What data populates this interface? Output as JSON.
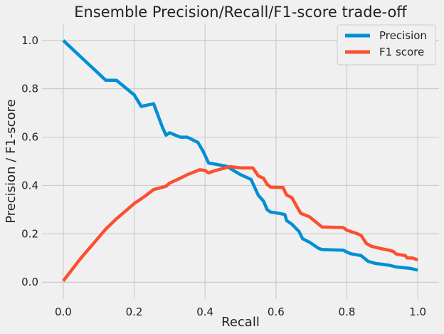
{
  "chart_data": {
    "type": "line",
    "title": "Ensemble Precision/Recall/F1-score trade-off",
    "xlabel": "Recall",
    "ylabel": "Precision / F1-score",
    "xlim": [
      -0.06,
      1.06
    ],
    "ylim": [
      -0.07,
      1.07
    ],
    "xticks": [
      "0.0",
      "0.2",
      "0.4",
      "0.6",
      "0.8",
      "1.0"
    ],
    "xtick_values": [
      0,
      0.2,
      0.4,
      0.6,
      0.8,
      1.0
    ],
    "yticks": [
      "0.0",
      "0.2",
      "0.4",
      "0.6",
      "0.8",
      "1.0"
    ],
    "ytick_values": [
      0,
      0.2,
      0.4,
      0.6,
      0.8,
      1.0
    ],
    "grid": true,
    "legend_position": "top-right",
    "series": [
      {
        "name": "Precision",
        "color": "#008fd5",
        "points": [
          [
            0.0,
            1.0
          ],
          [
            0.12,
            0.835
          ],
          [
            0.15,
            0.835
          ],
          [
            0.2,
            0.775
          ],
          [
            0.22,
            0.727
          ],
          [
            0.255,
            0.738
          ],
          [
            0.28,
            0.64
          ],
          [
            0.29,
            0.608
          ],
          [
            0.3,
            0.618
          ],
          [
            0.33,
            0.6
          ],
          [
            0.35,
            0.6
          ],
          [
            0.38,
            0.578
          ],
          [
            0.395,
            0.54
          ],
          [
            0.41,
            0.493
          ],
          [
            0.46,
            0.48
          ],
          [
            0.5,
            0.445
          ],
          [
            0.53,
            0.425
          ],
          [
            0.55,
            0.36
          ],
          [
            0.565,
            0.335
          ],
          [
            0.575,
            0.3
          ],
          [
            0.585,
            0.29
          ],
          [
            0.6,
            0.287
          ],
          [
            0.625,
            0.28
          ],
          [
            0.63,
            0.255
          ],
          [
            0.645,
            0.24
          ],
          [
            0.665,
            0.21
          ],
          [
            0.675,
            0.18
          ],
          [
            0.695,
            0.165
          ],
          [
            0.72,
            0.14
          ],
          [
            0.73,
            0.135
          ],
          [
            0.79,
            0.132
          ],
          [
            0.81,
            0.118
          ],
          [
            0.84,
            0.11
          ],
          [
            0.86,
            0.086
          ],
          [
            0.88,
            0.078
          ],
          [
            0.92,
            0.07
          ],
          [
            0.94,
            0.063
          ],
          [
            0.96,
            0.06
          ],
          [
            0.98,
            0.057
          ],
          [
            1.0,
            0.05
          ]
        ]
      },
      {
        "name": "F1 score",
        "color": "#fc4f30",
        "points": [
          [
            0.0,
            0.005
          ],
          [
            0.05,
            0.1
          ],
          [
            0.12,
            0.22
          ],
          [
            0.15,
            0.262
          ],
          [
            0.2,
            0.325
          ],
          [
            0.23,
            0.355
          ],
          [
            0.255,
            0.383
          ],
          [
            0.29,
            0.397
          ],
          [
            0.3,
            0.41
          ],
          [
            0.33,
            0.43
          ],
          [
            0.35,
            0.445
          ],
          [
            0.385,
            0.465
          ],
          [
            0.4,
            0.462
          ],
          [
            0.41,
            0.452
          ],
          [
            0.43,
            0.462
          ],
          [
            0.47,
            0.478
          ],
          [
            0.5,
            0.473
          ],
          [
            0.535,
            0.473
          ],
          [
            0.55,
            0.44
          ],
          [
            0.565,
            0.43
          ],
          [
            0.575,
            0.405
          ],
          [
            0.585,
            0.393
          ],
          [
            0.62,
            0.392
          ],
          [
            0.63,
            0.36
          ],
          [
            0.645,
            0.35
          ],
          [
            0.66,
            0.31
          ],
          [
            0.67,
            0.285
          ],
          [
            0.695,
            0.27
          ],
          [
            0.72,
            0.24
          ],
          [
            0.73,
            0.228
          ],
          [
            0.79,
            0.226
          ],
          [
            0.8,
            0.215
          ],
          [
            0.83,
            0.2
          ],
          [
            0.84,
            0.194
          ],
          [
            0.855,
            0.16
          ],
          [
            0.87,
            0.148
          ],
          [
            0.9,
            0.138
          ],
          [
            0.92,
            0.132
          ],
          [
            0.93,
            0.128
          ],
          [
            0.94,
            0.116
          ],
          [
            0.965,
            0.11
          ],
          [
            0.97,
            0.1
          ],
          [
            0.985,
            0.1
          ],
          [
            1.0,
            0.092
          ]
        ]
      }
    ]
  }
}
